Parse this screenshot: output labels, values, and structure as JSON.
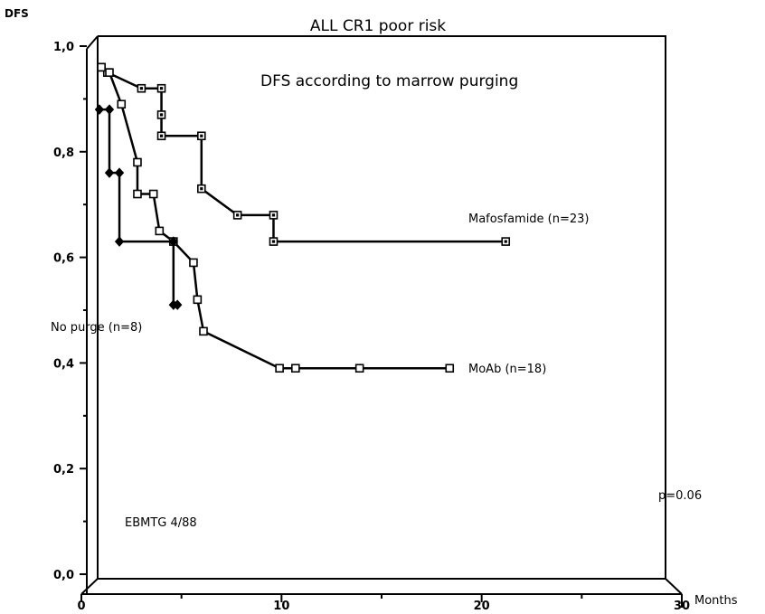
{
  "chart_data": {
    "type": "line",
    "title": "ALL CR1 poor risk",
    "subtitle": "DFS according to marrow purging",
    "ylabel": "DFS",
    "xlabel": "Months",
    "xlim": [
      0,
      30
    ],
    "ylim": [
      0,
      1.0
    ],
    "x_ticks": [
      "0",
      "10",
      "20",
      "30"
    ],
    "y_ticks": [
      "0,0",
      "0,2",
      "0,4",
      "0,6",
      "0,8",
      "1,0"
    ],
    "grid": false,
    "series": [
      {
        "name": "Mafosfamide (n=23)",
        "marker": "square-dot",
        "points": [
          [
            1.0,
            0.96
          ],
          [
            1.3,
            0.95
          ],
          [
            3.0,
            0.92
          ],
          [
            4.0,
            0.92
          ],
          [
            4.0,
            0.87
          ],
          [
            4.0,
            0.83
          ],
          [
            6.0,
            0.83
          ],
          [
            6.0,
            0.73
          ],
          [
            7.8,
            0.68
          ],
          [
            9.6,
            0.68
          ],
          [
            9.6,
            0.63
          ],
          [
            21.2,
            0.63
          ]
        ]
      },
      {
        "name": "MoAb (n=18)",
        "marker": "square-open",
        "points": [
          [
            1.0,
            0.96
          ],
          [
            1.4,
            0.95
          ],
          [
            2.0,
            0.89
          ],
          [
            2.8,
            0.78
          ],
          [
            2.8,
            0.72
          ],
          [
            3.6,
            0.72
          ],
          [
            3.9,
            0.65
          ],
          [
            4.6,
            0.63
          ],
          [
            5.6,
            0.59
          ],
          [
            5.8,
            0.52
          ],
          [
            6.1,
            0.46
          ],
          [
            9.9,
            0.39
          ],
          [
            10.7,
            0.39
          ],
          [
            13.9,
            0.39
          ],
          [
            18.4,
            0.39
          ]
        ]
      },
      {
        "name": "No purge (n=8)",
        "marker": "diamond",
        "points": [
          [
            0.9,
            0.88
          ],
          [
            1.4,
            0.88
          ],
          [
            1.4,
            0.76
          ],
          [
            1.9,
            0.76
          ],
          [
            1.9,
            0.63
          ],
          [
            4.6,
            0.63
          ],
          [
            4.6,
            0.51
          ],
          [
            4.8,
            0.51
          ]
        ]
      }
    ],
    "annotations": {
      "pvalue": "p=0.06",
      "study": "EBMTG 4/88"
    }
  }
}
